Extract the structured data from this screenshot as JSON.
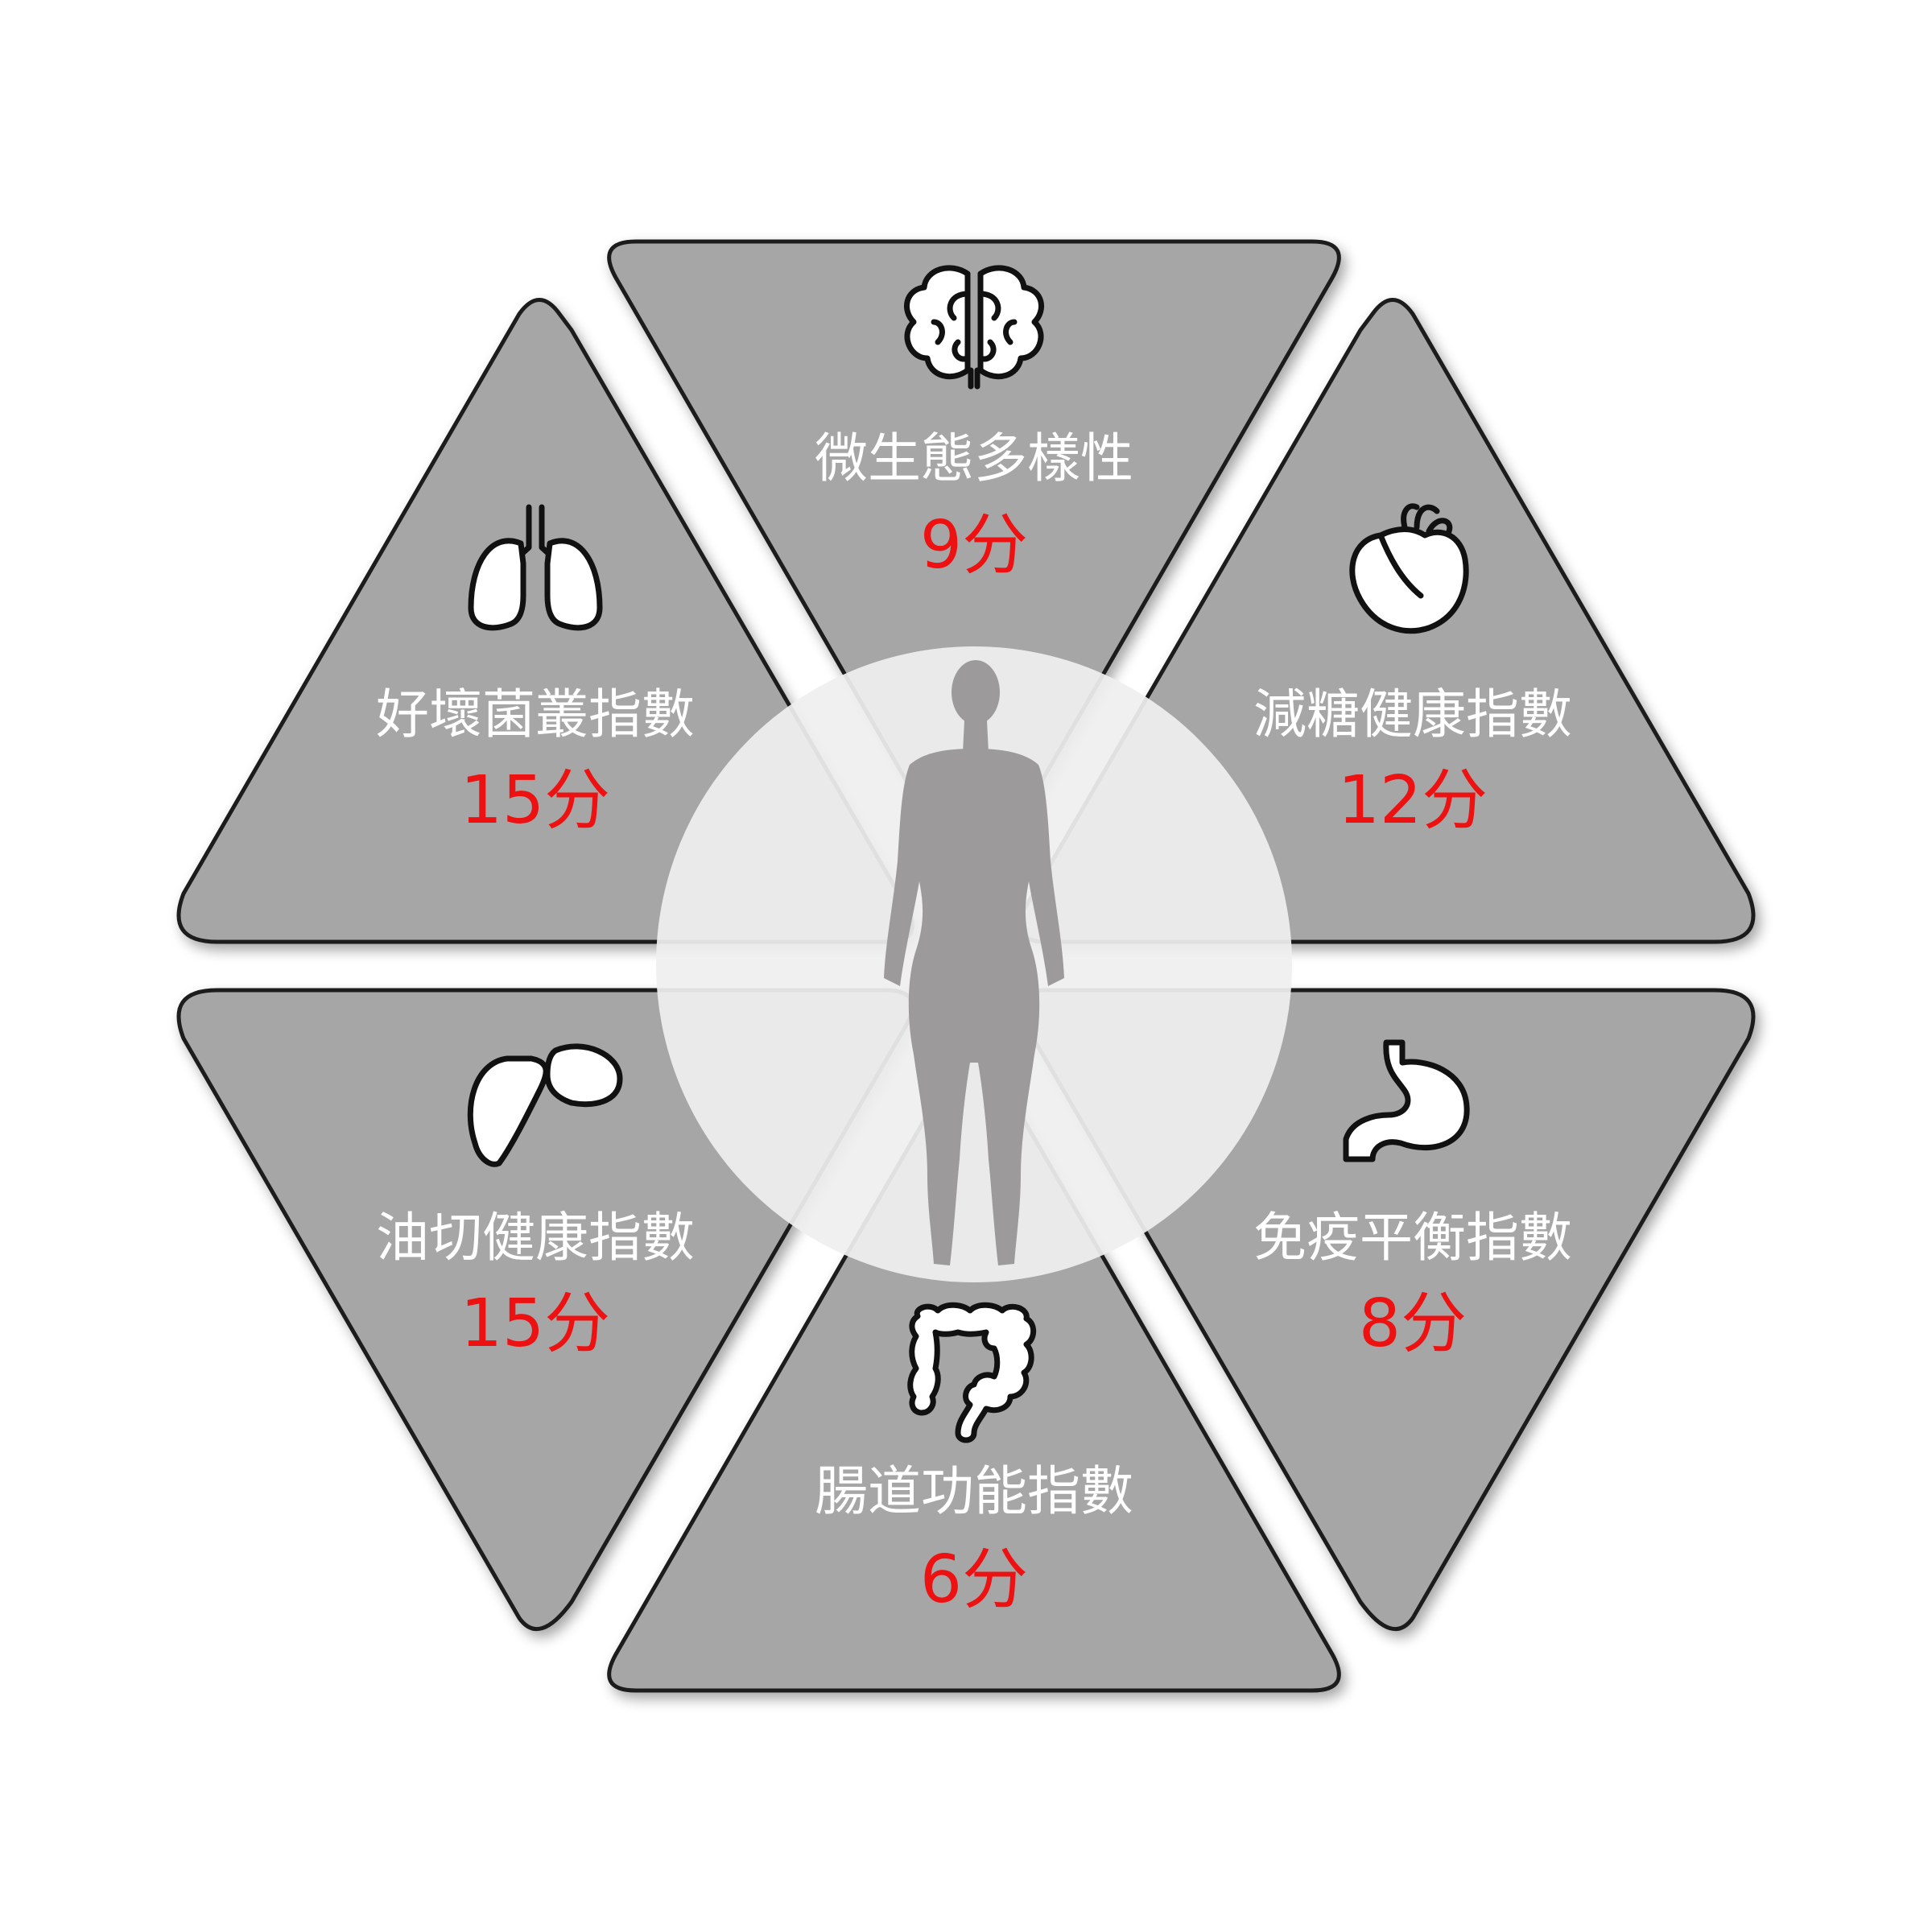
{
  "segments": [
    {
      "id": "top",
      "label": "微生態多樣性",
      "score": "9分",
      "icon": "brain-icon"
    },
    {
      "id": "upper-left",
      "label": "好壞菌叢指數",
      "score": "15分",
      "icon": "lungs-icon"
    },
    {
      "id": "upper-right",
      "label": "減糖健康指數",
      "score": "12分",
      "icon": "heart-icon"
    },
    {
      "id": "lower-left",
      "label": "油切健康指數",
      "score": "15分",
      "icon": "liver-icon"
    },
    {
      "id": "lower-right",
      "label": "免疫平衡指數",
      "score": "8分",
      "icon": "stomach-icon"
    },
    {
      "id": "bottom",
      "label": "腸道功能指數",
      "score": "6分",
      "icon": "intestine-icon"
    }
  ],
  "center": {
    "icon": "human-body-icon"
  },
  "colors": {
    "segment_fill": "#a6a6a6",
    "segment_stroke": "#1a1a1a",
    "score": "#ee1111",
    "label": "#ffffff",
    "center_circle": "#efefef",
    "body": "#9c9a9a"
  }
}
